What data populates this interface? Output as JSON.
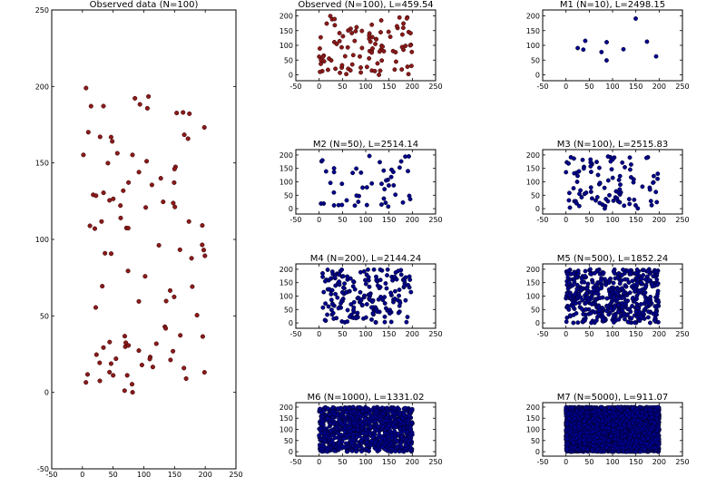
{
  "chart_data": [
    {
      "type": "scatter",
      "title": "Observed data (N=100)",
      "xlim": [
        -50,
        250
      ],
      "ylim": [
        -50,
        250
      ],
      "xticks": [
        -50,
        0,
        50,
        100,
        150,
        200,
        250
      ],
      "yticks": [
        -50,
        0,
        50,
        100,
        150,
        200,
        250
      ],
      "n": 100,
      "point_color": "#8b1a1a"
    },
    {
      "type": "scatter",
      "title": "Observed (N=100), L=459.54",
      "xlim": [
        -50,
        250
      ],
      "ylim": [
        -20,
        220
      ],
      "xticks": [
        -50,
        0,
        50,
        100,
        150,
        200,
        250
      ],
      "yticks": [
        0,
        50,
        100,
        150,
        200,
        250
      ],
      "n": 100,
      "point_color": "#8b1a1a"
    },
    {
      "type": "scatter",
      "title": "M1 (N=10), L=2498.15",
      "xlim": [
        -50,
        250
      ],
      "ylim": [
        -20,
        220
      ],
      "xticks": [
        -50,
        0,
        50,
        100,
        150,
        200,
        250
      ],
      "yticks": [
        0,
        50,
        100,
        150,
        200,
        250
      ],
      "n": 10,
      "point_color": "#00008b"
    },
    {
      "type": "scatter",
      "title": "M2 (N=50), L=2514.14",
      "xlim": [
        -50,
        250
      ],
      "ylim": [
        -20,
        220
      ],
      "xticks": [
        -50,
        0,
        50,
        100,
        150,
        200,
        250
      ],
      "yticks": [
        0,
        50,
        100,
        150,
        200,
        250
      ],
      "n": 50,
      "point_color": "#00008b"
    },
    {
      "type": "scatter",
      "title": "M3 (N=100), L=2515.83",
      "xlim": [
        -50,
        250
      ],
      "ylim": [
        -20,
        220
      ],
      "xticks": [
        -50,
        0,
        50,
        100,
        150,
        200,
        250
      ],
      "yticks": [
        0,
        50,
        100,
        150,
        200,
        250
      ],
      "n": 100,
      "point_color": "#00008b"
    },
    {
      "type": "scatter",
      "title": "M4 (N=200), L=2144.24",
      "xlim": [
        -50,
        250
      ],
      "ylim": [
        -20,
        220
      ],
      "xticks": [
        -50,
        0,
        50,
        100,
        150,
        200,
        250
      ],
      "yticks": [
        0,
        50,
        100,
        150,
        200,
        250
      ],
      "n": 200,
      "point_color": "#00008b"
    },
    {
      "type": "scatter",
      "title": "M5 (N=500), L=1852.24",
      "xlim": [
        -50,
        250
      ],
      "ylim": [
        -20,
        220
      ],
      "xticks": [
        -50,
        0,
        50,
        100,
        150,
        200,
        250
      ],
      "yticks": [
        0,
        50,
        100,
        150,
        200,
        250
      ],
      "n": 500,
      "point_color": "#00008b"
    },
    {
      "type": "scatter",
      "title": "M6 (N=1000), L=1331.02",
      "xlim": [
        -50,
        250
      ],
      "ylim": [
        -20,
        220
      ],
      "xticks": [
        -50,
        0,
        50,
        100,
        150,
        200,
        250
      ],
      "yticks": [
        0,
        50,
        100,
        150,
        200,
        250
      ],
      "n": 1000,
      "point_color": "#00008b"
    },
    {
      "type": "scatter",
      "title": "M7 (N=5000), L=911.07",
      "xlim": [
        -50,
        250
      ],
      "ylim": [
        -20,
        220
      ],
      "xticks": [
        -50,
        0,
        50,
        100,
        150,
        200,
        250
      ],
      "yticks": [
        0,
        50,
        100,
        150,
        200,
        250
      ],
      "n": 5000,
      "point_color": "#00008b"
    }
  ]
}
